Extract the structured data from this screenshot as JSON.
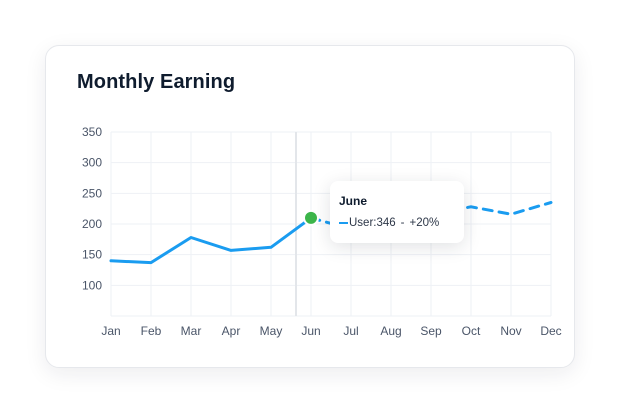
{
  "card": {
    "title": "Monthly Earning"
  },
  "tooltip": {
    "month": "June",
    "series_label": "User:346",
    "separator": "-",
    "change": "+20%"
  },
  "colors": {
    "line": "#1a9cf0",
    "highlight_point": "#3cb54a",
    "grid": "#eef1f5",
    "crosshair": "#e3e6ea"
  },
  "chart_data": {
    "type": "line",
    "title": "Monthly Earning",
    "xlabel": "",
    "ylabel": "",
    "categories": [
      "Jan",
      "Feb",
      "Mar",
      "Apr",
      "May",
      "Jun",
      "Jul",
      "Aug",
      "Sep",
      "Oct",
      "Nov",
      "Dec"
    ],
    "series": [
      {
        "values": [
          140,
          137,
          178,
          157,
          162,
          210,
          192,
          null,
          null,
          228,
          216,
          235
        ],
        "solid_through": "Jun",
        "dashed_from": "Jun"
      }
    ],
    "y_ticks": [
      100,
      150,
      200,
      250,
      300,
      350
    ],
    "ylim": [
      50,
      350
    ],
    "grid": true,
    "highlight": {
      "category": "Jun",
      "value": 210
    },
    "crosshair_category": "Jun"
  }
}
